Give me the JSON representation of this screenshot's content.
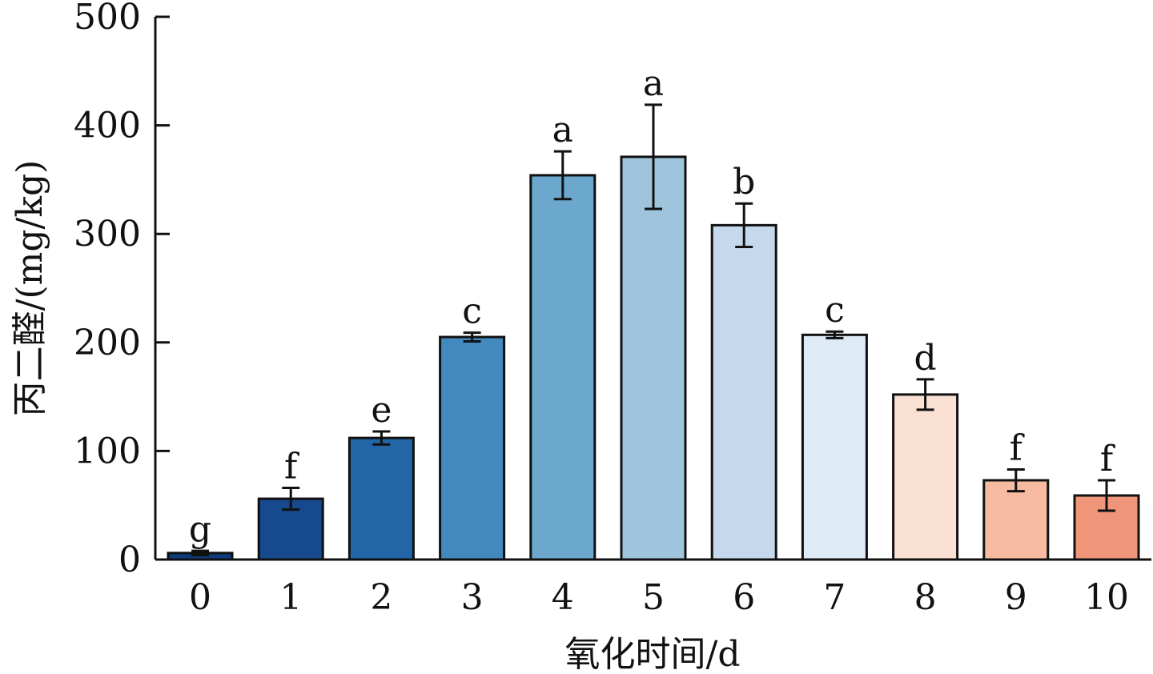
{
  "chart_data": {
    "type": "bar",
    "title": "",
    "xlabel": "氧化时间/d",
    "ylabel": "丙二醛/(mg/kg)",
    "ylim": [
      0,
      500
    ],
    "yticks": [
      "0",
      "100",
      "200",
      "300",
      "400",
      "500"
    ],
    "categories": [
      "0",
      "1",
      "2",
      "3",
      "4",
      "5",
      "6",
      "7",
      "8",
      "9",
      "10"
    ],
    "values": [
      6,
      56,
      112,
      205,
      354,
      371,
      308,
      207,
      152,
      73,
      59
    ],
    "errors": [
      2,
      10,
      6,
      4,
      22,
      48,
      20,
      3,
      14,
      10,
      14
    ],
    "significance": [
      "g",
      "f",
      "e",
      "c",
      "a",
      "a",
      "b",
      "c",
      "d",
      "f",
      "f"
    ],
    "colors": [
      "#0f3c7d",
      "#16498e",
      "#2366a8",
      "#4289be",
      "#6ca8ce",
      "#9ec5dc",
      "#c6d9ec",
      "#deeaf5",
      "#fbe0d4",
      "#f6bba1",
      "#ef957a"
    ],
    "grid": false,
    "legend": "none"
  }
}
